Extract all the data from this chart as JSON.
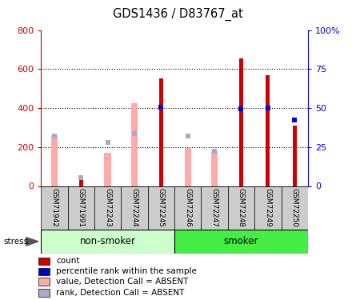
{
  "title": "GDS1436 / D83767_at",
  "samples": [
    "GSM71942",
    "GSM71991",
    "GSM72243",
    "GSM72244",
    "GSM72245",
    "GSM72246",
    "GSM72247",
    "GSM72248",
    "GSM72249",
    "GSM72250"
  ],
  "count_values": [
    0,
    30,
    0,
    0,
    550,
    0,
    0,
    655,
    570,
    310
  ],
  "percentile_rank_left": [
    0,
    0,
    0,
    0,
    405,
    0,
    0,
    395,
    400,
    340
  ],
  "absent_value": [
    260,
    0,
    170,
    425,
    0,
    195,
    180,
    0,
    0,
    0
  ],
  "absent_rank": [
    255,
    45,
    225,
    270,
    0,
    255,
    180,
    0,
    0,
    0
  ],
  "ylim_left": [
    0,
    800
  ],
  "yticks_left": [
    0,
    200,
    400,
    600,
    800
  ],
  "yticks_right": [
    0,
    25,
    50,
    75,
    100
  ],
  "ytick_labels_right": [
    "0",
    "25",
    "50",
    "75",
    "100%"
  ],
  "color_count": "#cc0000",
  "color_percentile": "#0000cc",
  "color_absent_value": "#ffaaaa",
  "color_absent_rank": "#aaaacc",
  "color_nonsmoker_light": "#ccffcc",
  "color_smoker_bright": "#44ee44",
  "group_label_nonsmoker": "non-smoker",
  "group_label_smoker": "smoker",
  "legend_items": [
    "count",
    "percentile rank within the sample",
    "value, Detection Call = ABSENT",
    "rank, Detection Call = ABSENT"
  ],
  "absent_value_bar_width": 0.25,
  "count_bar_width": 0.15
}
